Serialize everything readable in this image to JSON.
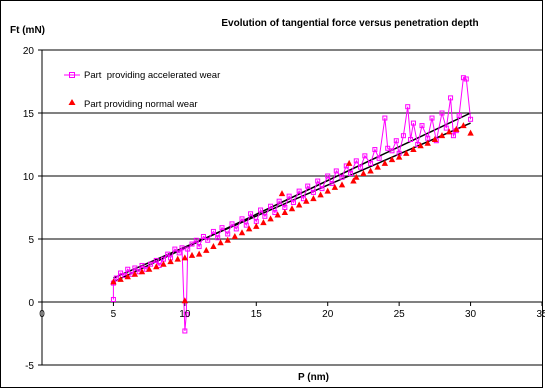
{
  "chart_data": {
    "type": "scatter",
    "title": "Evolution of tangential force versus penetration depth",
    "ylabel": "Ft (mN)",
    "xlabel": "P (nm)",
    "xlim": [
      0,
      35
    ],
    "ylim": [
      -5,
      20
    ],
    "x_ticks": [
      "0",
      "5",
      "10",
      "15",
      "20",
      "25",
      "30",
      "35"
    ],
    "x_tick_values": [
      0,
      5,
      10,
      15,
      20,
      25,
      30,
      35
    ],
    "y_ticks": [
      "-5",
      "0",
      "5",
      "10",
      "15",
      "20"
    ],
    "y_tick_values": [
      -5,
      0,
      5,
      10,
      15,
      20
    ],
    "grid": "horizontal",
    "legend_position": "top-left",
    "series": [
      {
        "name": "Part  providing accelerated wear",
        "color": "#ff00ff",
        "marker": "square",
        "connected": true,
        "points": [
          [
            5.0,
            0.2
          ],
          [
            5.0,
            1.5
          ],
          [
            5.2,
            1.9
          ],
          [
            5.5,
            2.3
          ],
          [
            5.8,
            2.1
          ],
          [
            6.0,
            2.6
          ],
          [
            6.3,
            2.2
          ],
          [
            6.5,
            2.7
          ],
          [
            6.8,
            2.4
          ],
          [
            7.0,
            2.9
          ],
          [
            7.3,
            2.6
          ],
          [
            7.6,
            3.0
          ],
          [
            8.0,
            3.3
          ],
          [
            8.2,
            2.9
          ],
          [
            8.5,
            3.4
          ],
          [
            8.8,
            3.8
          ],
          [
            9.0,
            3.5
          ],
          [
            9.3,
            4.2
          ],
          [
            9.6,
            3.9
          ],
          [
            9.8,
            4.3
          ],
          [
            10.0,
            -2.3
          ],
          [
            10.1,
            -1.0
          ],
          [
            10.2,
            4.2
          ],
          [
            10.5,
            4.6
          ],
          [
            10.8,
            4.9
          ],
          [
            11.0,
            4.4
          ],
          [
            11.3,
            5.2
          ],
          [
            11.6,
            4.9
          ],
          [
            12.0,
            5.6
          ],
          [
            12.3,
            5.1
          ],
          [
            12.6,
            5.9
          ],
          [
            13.0,
            5.4
          ],
          [
            13.3,
            6.2
          ],
          [
            13.6,
            5.8
          ],
          [
            14.0,
            6.6
          ],
          [
            14.3,
            6.1
          ],
          [
            14.6,
            7.0
          ],
          [
            15.0,
            6.4
          ],
          [
            15.3,
            7.3
          ],
          [
            15.6,
            6.8
          ],
          [
            16.0,
            7.6
          ],
          [
            16.3,
            7.1
          ],
          [
            16.6,
            8.0
          ],
          [
            17.0,
            7.5
          ],
          [
            17.3,
            8.4
          ],
          [
            17.6,
            7.9
          ],
          [
            18.0,
            8.8
          ],
          [
            18.3,
            8.2
          ],
          [
            18.6,
            9.2
          ],
          [
            19.0,
            8.7
          ],
          [
            19.3,
            9.6
          ],
          [
            19.6,
            9.0
          ],
          [
            20.0,
            10.0
          ],
          [
            20.3,
            9.4
          ],
          [
            20.6,
            10.4
          ],
          [
            21.0,
            9.9
          ],
          [
            21.3,
            10.8
          ],
          [
            21.6,
            10.2
          ],
          [
            22.0,
            11.2
          ],
          [
            22.3,
            10.7
          ],
          [
            22.6,
            11.6
          ],
          [
            23.0,
            11.0
          ],
          [
            23.3,
            12.1
          ],
          [
            23.6,
            11.4
          ],
          [
            24.0,
            14.6
          ],
          [
            24.2,
            12.2
          ],
          [
            24.5,
            12.0
          ],
          [
            24.8,
            12.8
          ],
          [
            25.0,
            11.8
          ],
          [
            25.3,
            13.2
          ],
          [
            25.6,
            15.5
          ],
          [
            25.8,
            12.9
          ],
          [
            26.0,
            14.2
          ],
          [
            26.3,
            12.5
          ],
          [
            26.6,
            14.0
          ],
          [
            27.0,
            13.0
          ],
          [
            27.3,
            14.6
          ],
          [
            27.6,
            12.8
          ],
          [
            28.0,
            15.0
          ],
          [
            28.3,
            13.8
          ],
          [
            28.6,
            16.2
          ],
          [
            28.8,
            13.2
          ],
          [
            29.0,
            13.6
          ],
          [
            29.2,
            14.8
          ],
          [
            29.5,
            17.8
          ],
          [
            29.7,
            17.7
          ],
          [
            30.0,
            14.5
          ]
        ]
      },
      {
        "name": "Part providing normal wear",
        "color": "#ff0000",
        "marker": "triangle",
        "connected": false,
        "points": [
          [
            5.0,
            1.6
          ],
          [
            5.5,
            1.8
          ],
          [
            6.0,
            2.0
          ],
          [
            6.5,
            2.2
          ],
          [
            7.0,
            2.4
          ],
          [
            7.5,
            2.6
          ],
          [
            8.0,
            2.8
          ],
          [
            8.5,
            3.0
          ],
          [
            9.0,
            3.2
          ],
          [
            9.5,
            3.4
          ],
          [
            10.0,
            0.1
          ],
          [
            10.0,
            3.5
          ],
          [
            10.5,
            3.7
          ],
          [
            11.0,
            3.8
          ],
          [
            11.5,
            4.1
          ],
          [
            12.0,
            4.4
          ],
          [
            12.5,
            4.7
          ],
          [
            13.0,
            4.9
          ],
          [
            13.5,
            5.2
          ],
          [
            14.0,
            5.5
          ],
          [
            14.5,
            5.8
          ],
          [
            15.0,
            6.0
          ],
          [
            15.5,
            6.3
          ],
          [
            16.0,
            6.6
          ],
          [
            16.5,
            6.9
          ],
          [
            16.8,
            8.6
          ],
          [
            17.0,
            7.1
          ],
          [
            17.5,
            7.4
          ],
          [
            18.0,
            7.7
          ],
          [
            18.5,
            8.0
          ],
          [
            19.0,
            8.2
          ],
          [
            19.5,
            8.5
          ],
          [
            20.0,
            8.8
          ],
          [
            20.5,
            9.1
          ],
          [
            21.0,
            9.3
          ],
          [
            21.5,
            11.0
          ],
          [
            21.8,
            9.6
          ],
          [
            22.0,
            9.9
          ],
          [
            22.5,
            10.2
          ],
          [
            23.0,
            10.4
          ],
          [
            23.5,
            10.7
          ],
          [
            24.0,
            11.0
          ],
          [
            24.5,
            11.3
          ],
          [
            25.0,
            11.5
          ],
          [
            25.5,
            11.8
          ],
          [
            26.0,
            12.1
          ],
          [
            26.5,
            12.4
          ],
          [
            27.0,
            12.6
          ],
          [
            27.5,
            12.9
          ],
          [
            28.0,
            13.2
          ],
          [
            28.5,
            13.5
          ],
          [
            29.0,
            13.7
          ],
          [
            29.5,
            14.0
          ],
          [
            30.0,
            13.4
          ]
        ]
      }
    ],
    "trendlines": [
      {
        "from": [
          5,
          1.6
        ],
        "to": [
          30,
          15.0
        ],
        "color": "#000000"
      },
      {
        "from": [
          5,
          1.9
        ],
        "to": [
          30,
          14.2
        ],
        "color": "#000000"
      }
    ]
  }
}
